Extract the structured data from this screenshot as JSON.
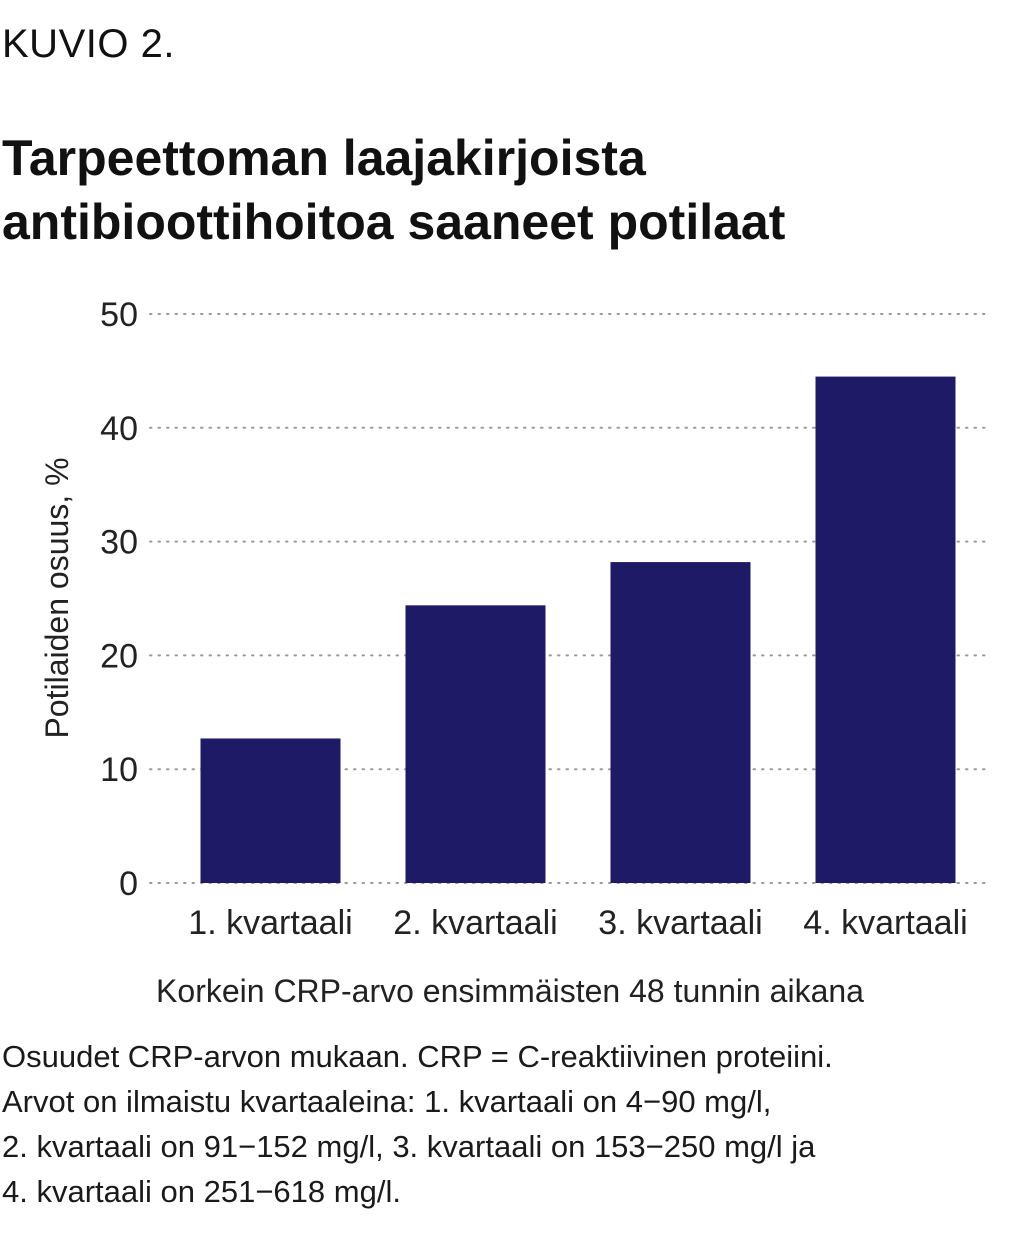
{
  "figure_label": "KUVIO 2.",
  "title_lines": [
    "Tarpeettoman laajakirjoista",
    "antibioottihoitoa saaneet potilaat"
  ],
  "chart_data": {
    "type": "bar",
    "title": "Tarpeettoman laajakirjoista antibioottihoitoa saaneet potilaat",
    "categories": [
      "1. kvartaali",
      "2. kvartaali",
      "3. kvartaali",
      "4. kvartaali"
    ],
    "values": [
      12.7,
      24.4,
      28.2,
      44.5
    ],
    "ylabel": "Potilaiden osuus, %",
    "xlabel": "Korkein CRP-arvo ensimmäisten 48 tunnin aikana",
    "ylim": [
      0,
      50
    ],
    "yticks": [
      0,
      10,
      20,
      30,
      40,
      50
    ],
    "grid": "horizontal dotted",
    "bar_color": "#1f1a66"
  },
  "footnote_lines": [
    "Osuudet CRP-arvon mukaan. CRP = C-reaktiivinen proteiini.",
    "Arvot on ilmaistu kvartaaleina: 1. kvartaali on 4−90 mg/l,",
    "2. kvartaali on 91−152 mg/l, 3. kvartaali on 153−250 mg/l ja",
    "4. kvartaali on 251−618 mg/l."
  ]
}
